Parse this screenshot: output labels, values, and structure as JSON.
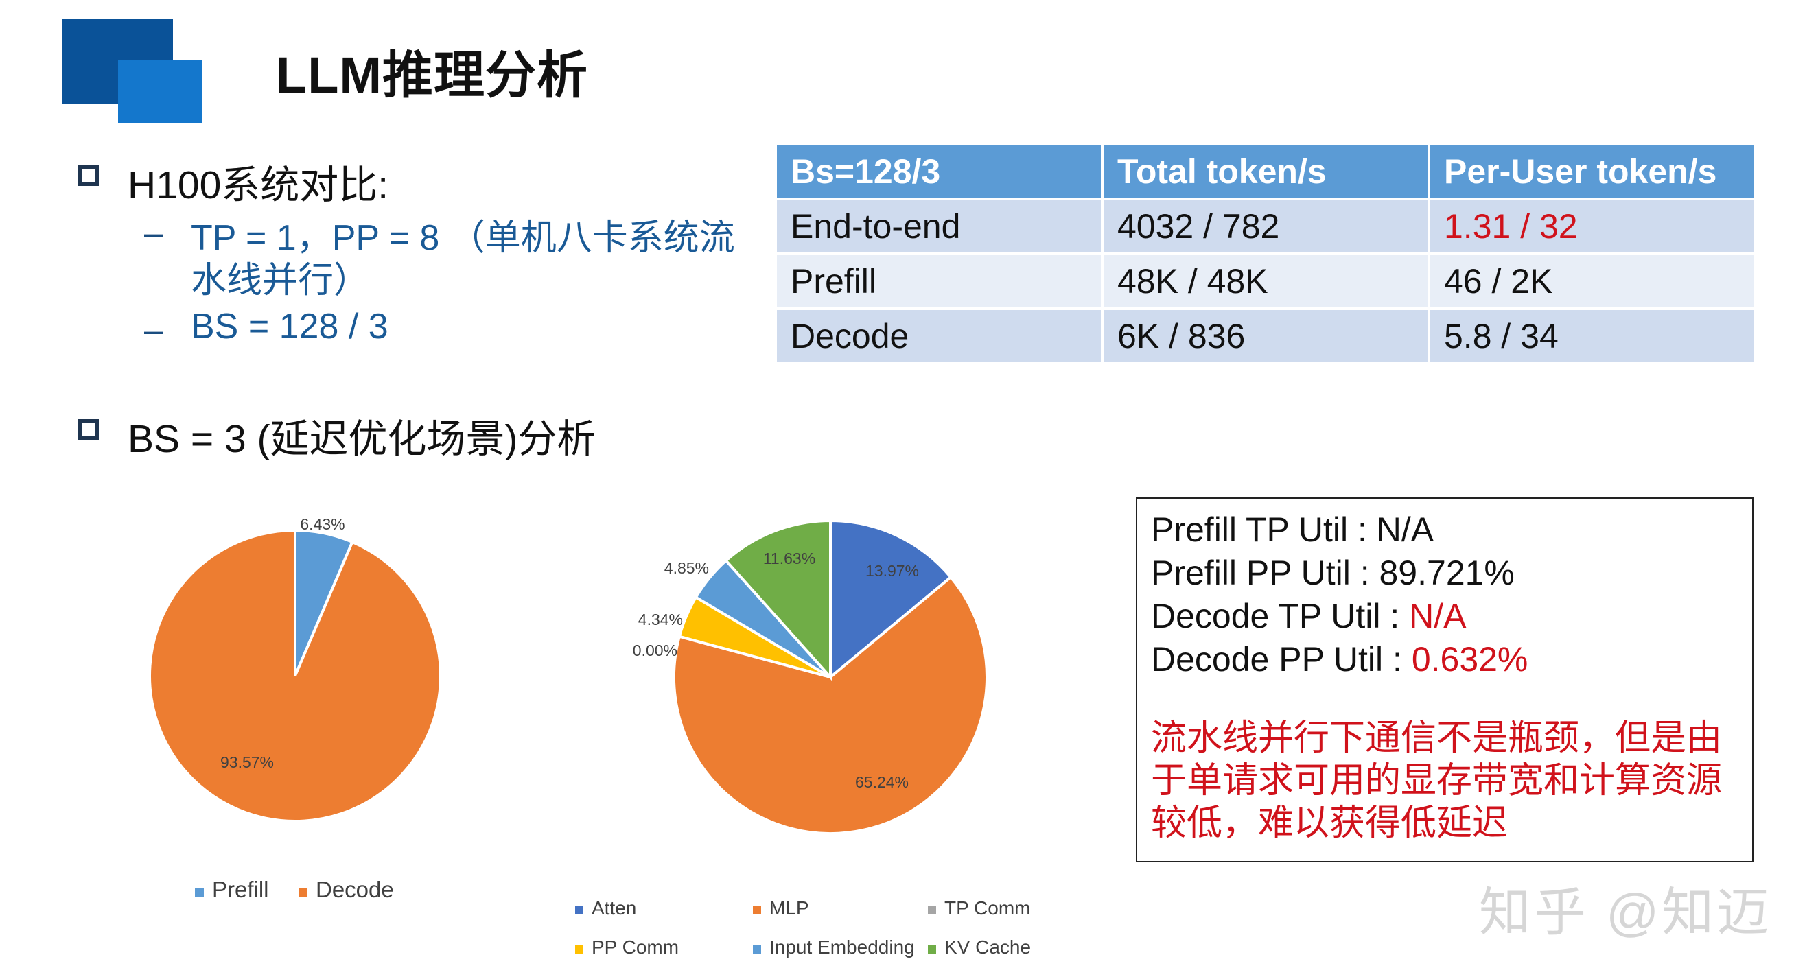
{
  "slide": {
    "title": "LLM推理分析"
  },
  "bullets": {
    "system": {
      "label": "H100系统对比:",
      "items": [
        {
          "line1": "TP = 1，PP = 8 （单机八卡系统流",
          "line2": "水线并行）"
        },
        {
          "line1": "BS = 128 / 3"
        }
      ]
    },
    "analysis": {
      "label": "BS = 3 (延迟优化场景)分析"
    }
  },
  "table": {
    "headers": [
      "Bs=128/3",
      "Total token/s",
      "Per-User token/s"
    ],
    "rows": [
      [
        "End-to-end",
        "4032 / 782",
        "1.31 / 32"
      ],
      [
        "Prefill",
        "48K / 48K",
        "46 / 2K"
      ],
      [
        "Decode",
        "6K / 836",
        "5.8 / 34"
      ]
    ]
  },
  "info": {
    "lines": [
      {
        "label": "Prefill TP Util : ",
        "value": "N/A"
      },
      {
        "label": "Prefill PP Util : ",
        "value": "89.721%"
      },
      {
        "label": "Decode TP Util : ",
        "value": "N/A"
      },
      {
        "label": "Decode PP Util : ",
        "value": "0.632%"
      }
    ],
    "note": [
      "流水线并行下通信不是瓶颈，但是由",
      "于单请求可用的显存带宽和计算资源",
      "较低，难以获得低延迟"
    ]
  },
  "watermark": "知乎 @知迈",
  "colors": {
    "blue": "#5b9bd5",
    "orange": "#ed7d31",
    "gray": "#a5a5a5",
    "yellow": "#ffc000",
    "dark_blue": "#4472c4",
    "green": "#70ad47",
    "red": "#d0121b"
  },
  "chart_data": [
    {
      "type": "pie",
      "categories": [
        "Prefill",
        "Decode"
      ],
      "values": [
        6.43,
        93.57
      ],
      "data_labels": [
        "6.43%",
        "93.57%"
      ],
      "colors": [
        "#5b9bd5",
        "#ed7d31"
      ],
      "legend": "bottom"
    },
    {
      "type": "pie",
      "categories": [
        "Atten",
        "MLP",
        "TP Comm",
        "PP Comm",
        "Input Embedding",
        "KV Cache"
      ],
      "values": [
        13.97,
        65.24,
        0.0,
        4.34,
        4.85,
        11.63
      ],
      "data_labels": [
        "13.97%",
        "65.24%",
        "0.00%",
        "4.34%",
        "4.85%",
        "11.63%"
      ],
      "colors": [
        "#4472c4",
        "#ed7d31",
        "#a5a5a5",
        "#ffc000",
        "#5b9bd5",
        "#70ad47"
      ],
      "legend": "bottom"
    }
  ]
}
